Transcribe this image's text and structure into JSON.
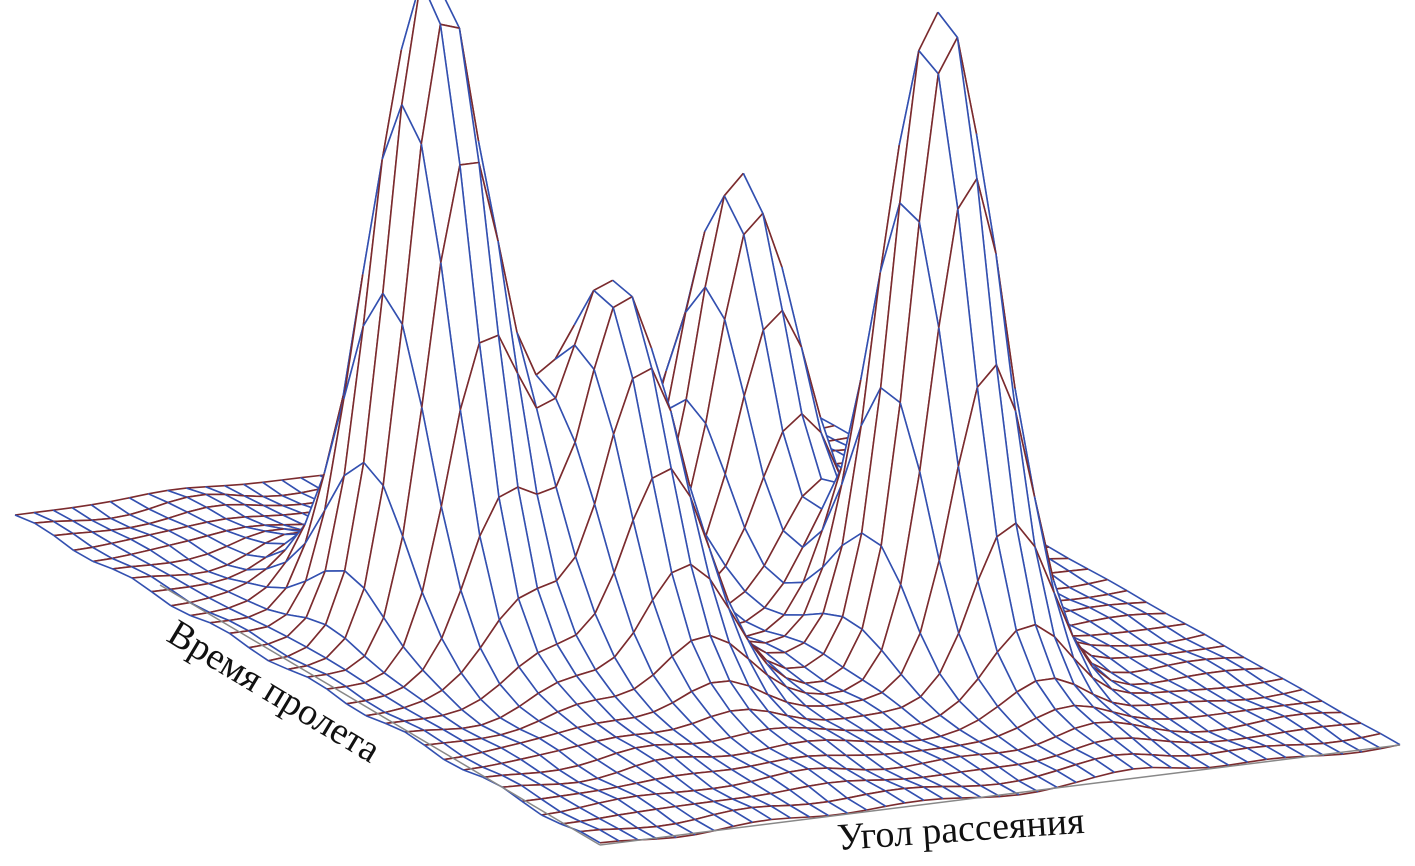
{
  "axes": {
    "time_label": "Время пролета",
    "angle_label": "Угол рассеяния"
  }
}
